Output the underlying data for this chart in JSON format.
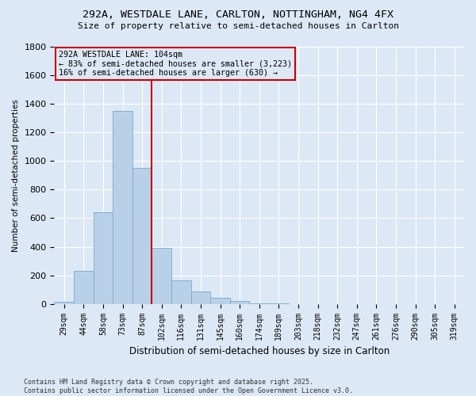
{
  "title1": "292A, WESTDALE LANE, CARLTON, NOTTINGHAM, NG4 4FX",
  "title2": "Size of property relative to semi-detached houses in Carlton",
  "xlabel": "Distribution of semi-detached houses by size in Carlton",
  "ylabel": "Number of semi-detached properties",
  "bin_labels": [
    "29sqm",
    "44sqm",
    "58sqm",
    "73sqm",
    "87sqm",
    "102sqm",
    "116sqm",
    "131sqm",
    "145sqm",
    "160sqm",
    "174sqm",
    "189sqm",
    "203sqm",
    "218sqm",
    "232sqm",
    "247sqm",
    "261sqm",
    "276sqm",
    "290sqm",
    "305sqm",
    "319sqm"
  ],
  "bar_heights": [
    15,
    230,
    640,
    1350,
    950,
    390,
    165,
    85,
    40,
    20,
    5,
    2,
    1,
    1,
    0,
    0,
    0,
    0,
    0,
    0,
    0
  ],
  "bar_color": "#b8d0e8",
  "bar_edge_color": "#7aaac8",
  "vline_color": "#cc0000",
  "annotation_title": "292A WESTDALE LANE: 104sqm",
  "annotation_line1": "← 83% of semi-detached houses are smaller (3,223)",
  "annotation_line2": "16% of semi-detached houses are larger (630) →",
  "annotation_box_edge_color": "#cc0000",
  "ylim": [
    0,
    1800
  ],
  "yticks": [
    0,
    200,
    400,
    600,
    800,
    1000,
    1200,
    1400,
    1600,
    1800
  ],
  "bg_color": "#dce8f5",
  "grid_color": "#ffffff",
  "footer1": "Contains HM Land Registry data © Crown copyright and database right 2025.",
  "footer2": "Contains public sector information licensed under the Open Government Licence v3.0."
}
